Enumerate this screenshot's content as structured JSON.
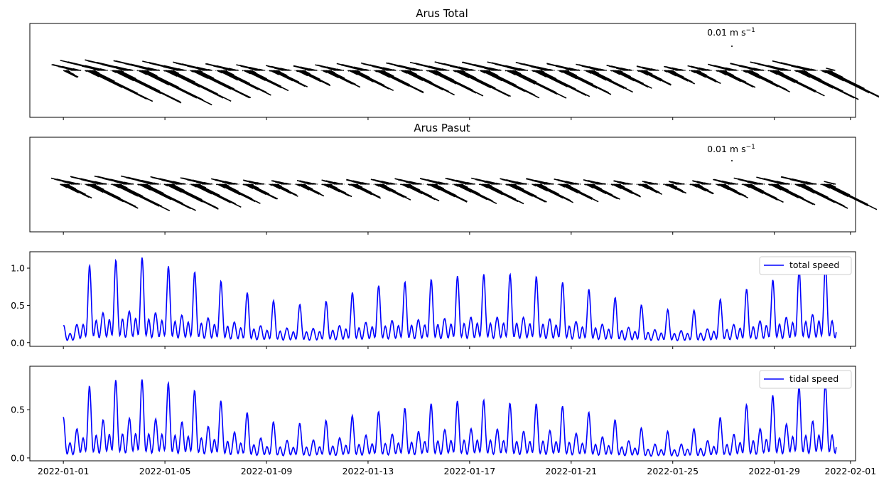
{
  "figure": {
    "x_ticks": [
      "2022-01-01",
      "2022-01-05",
      "2022-01-09",
      "2022-01-13",
      "2022-01-17",
      "2022-01-21",
      "2022-01-25",
      "2022-01-29",
      "2022-02-01"
    ]
  },
  "chart_data": [
    {
      "type": "quiver",
      "title": "Arus Total",
      "quiver_key_label": "0.01 m s",
      "quiver_key_exp": "−1",
      "xlim": [
        "2021-12-31",
        "2022-02-01"
      ],
      "color": "#000000",
      "grid": false
    },
    {
      "type": "quiver",
      "title": "Arus Pasut",
      "quiver_key_label": "0.01 m s",
      "quiver_key_exp": "−1",
      "xlim": [
        "2021-12-31",
        "2022-02-01"
      ],
      "color": "#000000",
      "grid": false
    },
    {
      "type": "line",
      "legend": "total speed",
      "legend_position": "upper right",
      "color": "#0000ff",
      "ylim": [
        -0.05,
        1.22
      ],
      "yticks": [
        "0.0",
        "0.5",
        "1.0"
      ],
      "daily_peaks": [
        {
          "date": "2022-01-01",
          "value": 0.23
        },
        {
          "date": "2022-01-02",
          "value": 1.05
        },
        {
          "date": "2022-01-03",
          "value": 1.12
        },
        {
          "date": "2022-01-04",
          "value": 1.17
        },
        {
          "date": "2022-01-05",
          "value": 1.05
        },
        {
          "date": "2022-01-06",
          "value": 0.98
        },
        {
          "date": "2022-01-07",
          "value": 0.87
        },
        {
          "date": "2022-01-08",
          "value": 0.71
        },
        {
          "date": "2022-01-09",
          "value": 0.59
        },
        {
          "date": "2022-01-10",
          "value": 0.52
        },
        {
          "date": "2022-01-11",
          "value": 0.52
        },
        {
          "date": "2022-01-12",
          "value": 0.64
        },
        {
          "date": "2022-01-13",
          "value": 0.75
        },
        {
          "date": "2022-01-14",
          "value": 0.81
        },
        {
          "date": "2022-01-15",
          "value": 0.84
        },
        {
          "date": "2022-01-16",
          "value": 0.88
        },
        {
          "date": "2022-01-17",
          "value": 0.93
        },
        {
          "date": "2022-01-18",
          "value": 0.93
        },
        {
          "date": "2022-01-19",
          "value": 0.93
        },
        {
          "date": "2022-01-20",
          "value": 0.88
        },
        {
          "date": "2022-01-21",
          "value": 0.79
        },
        {
          "date": "2022-01-22",
          "value": 0.7
        },
        {
          "date": "2022-01-23",
          "value": 0.58
        },
        {
          "date": "2022-01-24",
          "value": 0.49
        },
        {
          "date": "2022-01-25",
          "value": 0.44
        },
        {
          "date": "2022-01-26",
          "value": 0.44
        },
        {
          "date": "2022-01-27",
          "value": 0.61
        },
        {
          "date": "2022-01-28",
          "value": 0.74
        },
        {
          "date": "2022-01-29",
          "value": 0.86
        },
        {
          "date": "2022-01-30",
          "value": 1.0
        },
        {
          "date": "2022-01-31",
          "value": 1.05
        }
      ]
    },
    {
      "type": "line",
      "legend": "tidal speed",
      "legend_position": "upper right",
      "color": "#0000ff",
      "ylim": [
        -0.03,
        0.95
      ],
      "yticks": [
        "0.0",
        "0.5"
      ],
      "daily_peaks": [
        {
          "date": "2022-01-01",
          "value": 0.47
        },
        {
          "date": "2022-01-02",
          "value": 0.82
        },
        {
          "date": "2022-01-03",
          "value": 0.89
        },
        {
          "date": "2022-01-04",
          "value": 0.9
        },
        {
          "date": "2022-01-05",
          "value": 0.87
        },
        {
          "date": "2022-01-06",
          "value": 0.79
        },
        {
          "date": "2022-01-07",
          "value": 0.68
        },
        {
          "date": "2022-01-08",
          "value": 0.55
        },
        {
          "date": "2022-01-09",
          "value": 0.42
        },
        {
          "date": "2022-01-10",
          "value": 0.39
        },
        {
          "date": "2022-01-11",
          "value": 0.41
        },
        {
          "date": "2022-01-12",
          "value": 0.46
        },
        {
          "date": "2022-01-13",
          "value": 0.52
        },
        {
          "date": "2022-01-14",
          "value": 0.54
        },
        {
          "date": "2022-01-15",
          "value": 0.6
        },
        {
          "date": "2022-01-16",
          "value": 0.64
        },
        {
          "date": "2022-01-17",
          "value": 0.66
        },
        {
          "date": "2022-01-18",
          "value": 0.66
        },
        {
          "date": "2022-01-19",
          "value": 0.6
        },
        {
          "date": "2022-01-20",
          "value": 0.63
        },
        {
          "date": "2022-01-21",
          "value": 0.57
        },
        {
          "date": "2022-01-22",
          "value": 0.5
        },
        {
          "date": "2022-01-23",
          "value": 0.41
        },
        {
          "date": "2022-01-24",
          "value": 0.32
        },
        {
          "date": "2022-01-25",
          "value": 0.3
        },
        {
          "date": "2022-01-26",
          "value": 0.34
        },
        {
          "date": "2022-01-27",
          "value": 0.48
        },
        {
          "date": "2022-01-28",
          "value": 0.62
        },
        {
          "date": "2022-01-29",
          "value": 0.72
        },
        {
          "date": "2022-01-30",
          "value": 0.82
        },
        {
          "date": "2022-01-31",
          "value": 0.85
        }
      ]
    }
  ]
}
